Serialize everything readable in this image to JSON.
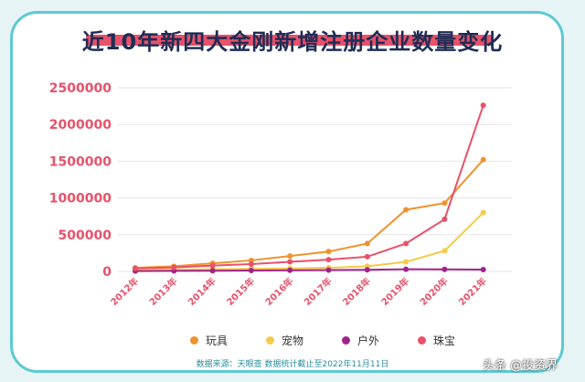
{
  "chart_data": {
    "type": "line",
    "title": "近10年新四大金刚新增注册企业数量变化",
    "categories": [
      "2012年",
      "2013年",
      "2014年",
      "2015年",
      "2016年",
      "2017年",
      "2018年",
      "2019年",
      "2020年",
      "2021年"
    ],
    "y_ticks": [
      "2500000",
      "2000000",
      "1500000",
      "1000000",
      "500000",
      "0"
    ],
    "ylim": [
      0,
      2500000
    ],
    "grid": true,
    "legend_position": "bottom",
    "series": [
      {
        "name": "玩具",
        "color": "#f0922d",
        "values": [
          50000,
          70000,
          110000,
          150000,
          210000,
          270000,
          380000,
          840000,
          930000,
          1520000
        ]
      },
      {
        "name": "宠物",
        "color": "#f6c94a",
        "values": [
          20000,
          25000,
          30000,
          35000,
          40000,
          50000,
          70000,
          130000,
          280000,
          800000
        ]
      },
      {
        "name": "户外",
        "color": "#a0238c",
        "values": [
          5000,
          7000,
          10000,
          12000,
          15000,
          18000,
          22000,
          30000,
          28000,
          25000
        ]
      },
      {
        "name": "珠宝",
        "color": "#e8516a",
        "values": [
          40000,
          55000,
          80000,
          100000,
          130000,
          160000,
          200000,
          380000,
          710000,
          2260000
        ]
      }
    ]
  },
  "source_text": "数据来源：天眼查 数据统计截止至2022年11月11日",
  "watermark": "头条 @投资界"
}
